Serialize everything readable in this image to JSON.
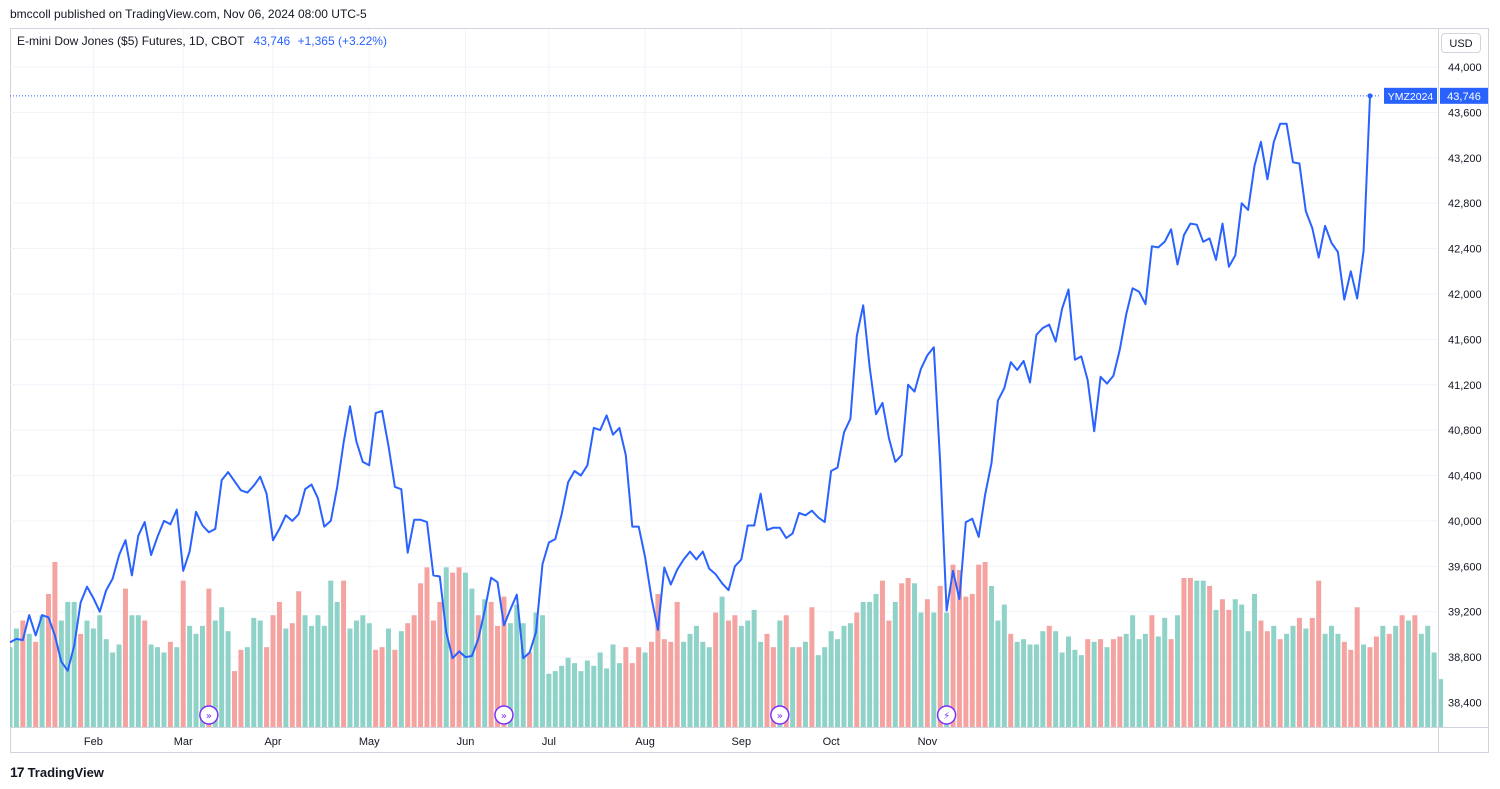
{
  "header": {
    "published": "bmccoll published on TradingView.com, Nov 06, 2024 08:00 UTC-5"
  },
  "legend": {
    "symbol": "E-mini Dow Jones ($5) Futures, 1D, CBOT",
    "last": "43,746",
    "change": "+1,365 (+3.22%)"
  },
  "currency": "USD",
  "price_tag": {
    "symbol": "YMZ2024",
    "value": "43,746"
  },
  "footer": {
    "brand": "TradingView"
  },
  "colors": {
    "line": "#2962ff",
    "up_volume": "#8fd3c8",
    "down_volume": "#f5a3a0",
    "grid": "#f0f3fa"
  },
  "chart_data": {
    "type": "line",
    "title": "E-mini Dow Jones ($5) Futures, 1D, CBOT",
    "ylim": [
      38200,
      44300
    ],
    "y_ticks": [
      38400,
      38800,
      39200,
      39600,
      40000,
      40400,
      40800,
      41200,
      41600,
      42000,
      42400,
      42800,
      43200,
      43600,
      44000
    ],
    "y_tick_labels": [
      "38,400",
      "38,800",
      "39,200",
      "39,600",
      "40,000",
      "40,400",
      "40,800",
      "41,200",
      "41,600",
      "42,000",
      "42,400",
      "42,800",
      "43,200",
      "43,600",
      "44,000"
    ],
    "x_labels": [
      "Feb",
      "Mar",
      "Apr",
      "May",
      "Jun",
      "Jul",
      "Aug",
      "Sep",
      "Oct",
      "Nov"
    ],
    "x_label_bar_index": [
      13,
      27,
      41,
      56,
      71,
      84,
      99,
      114,
      128,
      143
    ],
    "event_icons": [
      {
        "bar": 31,
        "icon": "dividend-arrow-icon"
      },
      {
        "bar": 77,
        "icon": "dividend-arrow-icon"
      },
      {
        "bar": 120,
        "icon": "dividend-arrow-icon"
      },
      {
        "bar": 146,
        "icon": "lightning-icon"
      }
    ],
    "series": [
      {
        "values": [
          38930,
          38960,
          38950,
          39170,
          38990,
          39170,
          39150,
          38990,
          38760,
          38680,
          38900,
          39280,
          39420,
          39320,
          39200,
          39390,
          39490,
          39700,
          39830,
          39520,
          39870,
          39990,
          39700,
          39860,
          40000,
          39970,
          40100,
          39560,
          39730,
          40080,
          39960,
          39900,
          39930,
          40360,
          40430,
          40350,
          40270,
          40250,
          40310,
          40390,
          40240,
          39830,
          39930,
          40050,
          40000,
          40060,
          40280,
          40320,
          40200,
          39950,
          40000,
          40300,
          40690,
          41010,
          40700,
          40520,
          40490,
          40950,
          40970,
          40660,
          40300,
          40280,
          39720,
          40010,
          40010,
          39990,
          39520,
          39510,
          39020,
          38790,
          38850,
          38800,
          38810,
          38960,
          39210,
          39500,
          39460,
          39080,
          39220,
          39350,
          38790,
          38840,
          39020,
          39620,
          39810,
          39840,
          40060,
          40340,
          40440,
          40400,
          40490,
          40820,
          40800,
          40930,
          40760,
          40820,
          40580,
          39950,
          39950,
          39680,
          39320,
          39040,
          39590,
          39440,
          39570,
          39660,
          39730,
          39660,
          39730,
          39580,
          39530,
          39450,
          39390,
          39600,
          39660,
          39960,
          39960,
          40240,
          39920,
          39940,
          39940,
          39850,
          39890,
          40070,
          40050,
          40090,
          40030,
          39990,
          40440,
          40470,
          40780,
          40900,
          41630,
          41900,
          41360,
          40940,
          41040,
          40730,
          40520,
          40580,
          41200,
          41140,
          41340,
          41460,
          41530,
          40510,
          39210,
          39560,
          39310,
          39990,
          40020,
          39860,
          40230,
          40510,
          41060,
          41170,
          41400,
          41330,
          41410,
          41220,
          41640,
          41700,
          41730,
          41580,
          41870,
          42040,
          41420,
          41450,
          41240,
          40790,
          41270,
          41210,
          41280,
          41510,
          41820,
          42050,
          42020,
          41910,
          42420,
          42410,
          42460,
          42570,
          42260,
          42520,
          42620,
          42610,
          42460,
          42490,
          42300,
          42620,
          42240,
          42340,
          42800,
          42740,
          43130,
          43340,
          43010,
          43340,
          43500,
          43500,
          43160,
          43150,
          42730,
          42580,
          42320,
          42600,
          42450,
          42370,
          41950,
          42200,
          41960,
          42380,
          43746
        ]
      }
    ],
    "volume": [
      [
        0.3,
        "u"
      ],
      [
        0.37,
        "u"
      ],
      [
        0.4,
        "d"
      ],
      [
        0.35,
        "u"
      ],
      [
        0.32,
        "d"
      ],
      [
        0.42,
        "u"
      ],
      [
        0.5,
        "d"
      ],
      [
        0.62,
        "d"
      ],
      [
        0.4,
        "u"
      ],
      [
        0.47,
        "u"
      ],
      [
        0.47,
        "u"
      ],
      [
        0.35,
        "d"
      ],
      [
        0.4,
        "u"
      ],
      [
        0.37,
        "u"
      ],
      [
        0.42,
        "u"
      ],
      [
        0.33,
        "u"
      ],
      [
        0.28,
        "u"
      ],
      [
        0.31,
        "u"
      ],
      [
        0.52,
        "d"
      ],
      [
        0.42,
        "u"
      ],
      [
        0.42,
        "u"
      ],
      [
        0.4,
        "d"
      ],
      [
        0.31,
        "u"
      ],
      [
        0.3,
        "u"
      ],
      [
        0.28,
        "u"
      ],
      [
        0.32,
        "d"
      ],
      [
        0.3,
        "u"
      ],
      [
        0.55,
        "d"
      ],
      [
        0.38,
        "u"
      ],
      [
        0.35,
        "u"
      ],
      [
        0.38,
        "u"
      ],
      [
        0.52,
        "d"
      ],
      [
        0.4,
        "u"
      ],
      [
        0.45,
        "u"
      ],
      [
        0.36,
        "u"
      ],
      [
        0.21,
        "d"
      ],
      [
        0.29,
        "d"
      ],
      [
        0.3,
        "u"
      ],
      [
        0.41,
        "u"
      ],
      [
        0.4,
        "u"
      ],
      [
        0.3,
        "d"
      ],
      [
        0.42,
        "d"
      ],
      [
        0.47,
        "d"
      ],
      [
        0.37,
        "u"
      ],
      [
        0.39,
        "d"
      ],
      [
        0.51,
        "d"
      ],
      [
        0.42,
        "u"
      ],
      [
        0.38,
        "u"
      ],
      [
        0.42,
        "u"
      ],
      [
        0.38,
        "u"
      ],
      [
        0.55,
        "u"
      ],
      [
        0.47,
        "u"
      ],
      [
        0.55,
        "d"
      ],
      [
        0.37,
        "u"
      ],
      [
        0.4,
        "u"
      ],
      [
        0.42,
        "u"
      ],
      [
        0.39,
        "u"
      ],
      [
        0.29,
        "d"
      ],
      [
        0.3,
        "d"
      ],
      [
        0.37,
        "u"
      ],
      [
        0.29,
        "d"
      ],
      [
        0.36,
        "u"
      ],
      [
        0.39,
        "d"
      ],
      [
        0.42,
        "d"
      ],
      [
        0.54,
        "d"
      ],
      [
        0.6,
        "d"
      ],
      [
        0.4,
        "d"
      ],
      [
        0.47,
        "d"
      ],
      [
        0.6,
        "u"
      ],
      [
        0.58,
        "d"
      ],
      [
        0.6,
        "d"
      ],
      [
        0.58,
        "u"
      ],
      [
        0.52,
        "u"
      ],
      [
        0.42,
        "d"
      ],
      [
        0.48,
        "u"
      ],
      [
        0.47,
        "d"
      ],
      [
        0.38,
        "d"
      ],
      [
        0.49,
        "d"
      ],
      [
        0.39,
        "u"
      ],
      [
        0.46,
        "u"
      ],
      [
        0.39,
        "u"
      ],
      [
        0.28,
        "d"
      ],
      [
        0.43,
        "u"
      ],
      [
        0.42,
        "u"
      ],
      [
        0.2,
        "u"
      ],
      [
        0.21,
        "u"
      ],
      [
        0.23,
        "u"
      ],
      [
        0.26,
        "u"
      ],
      [
        0.24,
        "u"
      ],
      [
        0.21,
        "u"
      ],
      [
        0.25,
        "u"
      ],
      [
        0.23,
        "u"
      ],
      [
        0.28,
        "u"
      ],
      [
        0.22,
        "u"
      ],
      [
        0.31,
        "u"
      ],
      [
        0.24,
        "u"
      ],
      [
        0.3,
        "d"
      ],
      [
        0.24,
        "d"
      ],
      [
        0.3,
        "d"
      ],
      [
        0.28,
        "u"
      ],
      [
        0.32,
        "d"
      ],
      [
        0.5,
        "d"
      ],
      [
        0.33,
        "d"
      ],
      [
        0.32,
        "d"
      ],
      [
        0.47,
        "d"
      ],
      [
        0.32,
        "u"
      ],
      [
        0.35,
        "u"
      ],
      [
        0.38,
        "u"
      ],
      [
        0.32,
        "u"
      ],
      [
        0.3,
        "u"
      ],
      [
        0.43,
        "d"
      ],
      [
        0.49,
        "u"
      ],
      [
        0.4,
        "d"
      ],
      [
        0.42,
        "d"
      ],
      [
        0.38,
        "u"
      ],
      [
        0.4,
        "u"
      ],
      [
        0.44,
        "u"
      ],
      [
        0.32,
        "u"
      ],
      [
        0.35,
        "d"
      ],
      [
        0.3,
        "d"
      ],
      [
        0.4,
        "u"
      ],
      [
        0.42,
        "d"
      ],
      [
        0.3,
        "u"
      ],
      [
        0.3,
        "d"
      ],
      [
        0.32,
        "u"
      ],
      [
        0.45,
        "d"
      ],
      [
        0.27,
        "u"
      ],
      [
        0.3,
        "u"
      ],
      [
        0.36,
        "u"
      ],
      [
        0.33,
        "u"
      ],
      [
        0.38,
        "u"
      ],
      [
        0.39,
        "u"
      ],
      [
        0.43,
        "d"
      ],
      [
        0.47,
        "u"
      ],
      [
        0.47,
        "u"
      ],
      [
        0.5,
        "u"
      ],
      [
        0.55,
        "d"
      ],
      [
        0.4,
        "d"
      ],
      [
        0.47,
        "u"
      ],
      [
        0.54,
        "d"
      ],
      [
        0.56,
        "d"
      ],
      [
        0.54,
        "u"
      ],
      [
        0.43,
        "u"
      ],
      [
        0.48,
        "d"
      ],
      [
        0.43,
        "u"
      ],
      [
        0.53,
        "d"
      ],
      [
        0.43,
        "u"
      ],
      [
        0.61,
        "d"
      ],
      [
        0.59,
        "d"
      ],
      [
        0.49,
        "d"
      ],
      [
        0.5,
        "d"
      ],
      [
        0.61,
        "d"
      ],
      [
        0.62,
        "d"
      ],
      [
        0.53,
        "u"
      ],
      [
        0.4,
        "u"
      ],
      [
        0.46,
        "u"
      ],
      [
        0.35,
        "d"
      ],
      [
        0.32,
        "u"
      ],
      [
        0.33,
        "u"
      ],
      [
        0.31,
        "u"
      ],
      [
        0.31,
        "u"
      ],
      [
        0.36,
        "u"
      ],
      [
        0.38,
        "d"
      ],
      [
        0.36,
        "u"
      ],
      [
        0.28,
        "u"
      ],
      [
        0.34,
        "u"
      ],
      [
        0.29,
        "u"
      ],
      [
        0.27,
        "u"
      ],
      [
        0.33,
        "d"
      ],
      [
        0.32,
        "u"
      ],
      [
        0.33,
        "d"
      ],
      [
        0.3,
        "u"
      ],
      [
        0.33,
        "d"
      ],
      [
        0.34,
        "d"
      ],
      [
        0.35,
        "u"
      ],
      [
        0.42,
        "u"
      ],
      [
        0.33,
        "u"
      ],
      [
        0.35,
        "u"
      ],
      [
        0.42,
        "d"
      ],
      [
        0.34,
        "u"
      ],
      [
        0.41,
        "u"
      ],
      [
        0.33,
        "d"
      ],
      [
        0.42,
        "u"
      ],
      [
        0.56,
        "d"
      ],
      [
        0.56,
        "d"
      ],
      [
        0.55,
        "u"
      ],
      [
        0.55,
        "u"
      ],
      [
        0.53,
        "d"
      ],
      [
        0.44,
        "u"
      ],
      [
        0.48,
        "d"
      ],
      [
        0.44,
        "d"
      ],
      [
        0.48,
        "u"
      ],
      [
        0.46,
        "u"
      ],
      [
        0.36,
        "u"
      ],
      [
        0.5,
        "u"
      ],
      [
        0.4,
        "d"
      ],
      [
        0.36,
        "d"
      ],
      [
        0.38,
        "u"
      ],
      [
        0.33,
        "d"
      ],
      [
        0.35,
        "u"
      ],
      [
        0.38,
        "u"
      ],
      [
        0.41,
        "d"
      ],
      [
        0.37,
        "u"
      ],
      [
        0.41,
        "d"
      ],
      [
        0.55,
        "d"
      ],
      [
        0.35,
        "u"
      ],
      [
        0.38,
        "u"
      ],
      [
        0.35,
        "u"
      ],
      [
        0.32,
        "d"
      ],
      [
        0.29,
        "d"
      ],
      [
        0.45,
        "d"
      ],
      [
        0.31,
        "u"
      ],
      [
        0.3,
        "d"
      ],
      [
        0.34,
        "d"
      ],
      [
        0.38,
        "u"
      ],
      [
        0.35,
        "d"
      ],
      [
        0.38,
        "u"
      ],
      [
        0.42,
        "d"
      ],
      [
        0.4,
        "u"
      ],
      [
        0.42,
        "d"
      ],
      [
        0.35,
        "u"
      ],
      [
        0.38,
        "u"
      ],
      [
        0.28,
        "u"
      ],
      [
        0.18,
        "u"
      ]
    ]
  }
}
